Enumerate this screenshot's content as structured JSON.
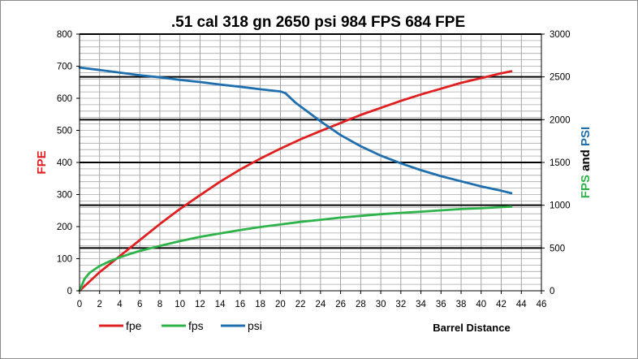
{
  "chart_data": {
    "type": "line",
    "title": ".51 cal 318 gn 2650 psi 984 FPS 684 FPE",
    "xlabel": "Barrel Distance",
    "ylabel_left": "FPE",
    "ylabel_right_parts": [
      {
        "text": "FPS",
        "color": "#2eb34a"
      },
      {
        "text": " and ",
        "color": "#000000"
      },
      {
        "text": "PSI",
        "color": "#1f6fae"
      }
    ],
    "xlim": [
      0,
      46
    ],
    "ylim_left": [
      0,
      800
    ],
    "ylim_right": [
      0,
      3000
    ],
    "x_ticks": [
      "0",
      "2",
      "4",
      "6",
      "8",
      "10",
      "12",
      "14",
      "16",
      "18",
      "20",
      "22",
      "24",
      "26",
      "28",
      "30",
      "32",
      "34",
      "36",
      "38",
      "40",
      "42",
      "44",
      "46"
    ],
    "y_left_ticks": [
      "0",
      "100",
      "200",
      "300",
      "400",
      "500",
      "600",
      "700",
      "800"
    ],
    "y_right_ticks": [
      "0",
      "500",
      "1000",
      "1500",
      "2000",
      "2500",
      "3000"
    ],
    "grid": true,
    "legend_position": "bottom-left",
    "series": [
      {
        "name": "fpe",
        "axis": "left",
        "color": "#e02020",
        "x": [
          0,
          2,
          4,
          6,
          8,
          10,
          12,
          14,
          16,
          18,
          20,
          22,
          24,
          26,
          28,
          30,
          32,
          34,
          36,
          38,
          40,
          42,
          43
        ],
        "y": [
          0,
          58,
          108,
          158,
          208,
          255,
          298,
          340,
          378,
          412,
          443,
          472,
          498,
          523,
          548,
          570,
          592,
          612,
          630,
          648,
          663,
          678,
          684
        ]
      },
      {
        "name": "fps",
        "axis": "right",
        "color": "#2eb34a",
        "x": [
          0,
          0.5,
          1,
          2,
          3,
          4,
          5,
          6,
          8,
          10,
          12,
          14,
          16,
          18,
          20,
          22,
          24,
          26,
          28,
          30,
          32,
          34,
          36,
          38,
          40,
          42,
          43
        ],
        "y": [
          0,
          140,
          210,
          290,
          345,
          390,
          430,
          465,
          525,
          580,
          630,
          670,
          710,
          745,
          775,
          805,
          830,
          855,
          875,
          895,
          910,
          925,
          940,
          955,
          965,
          978,
          984
        ]
      },
      {
        "name": "psi",
        "axis": "right",
        "color": "#1f6fae",
        "x": [
          0,
          2,
          4,
          6,
          8,
          10,
          12,
          14,
          16,
          18,
          20,
          20.5,
          21.5,
          24,
          26,
          28,
          30,
          32,
          34,
          36,
          38,
          40,
          42,
          43
        ],
        "y": [
          2610,
          2580,
          2550,
          2520,
          2495,
          2465,
          2440,
          2410,
          2385,
          2355,
          2330,
          2310,
          2200,
          1980,
          1820,
          1690,
          1580,
          1490,
          1410,
          1340,
          1280,
          1220,
          1170,
          1140
        ]
      }
    ]
  }
}
